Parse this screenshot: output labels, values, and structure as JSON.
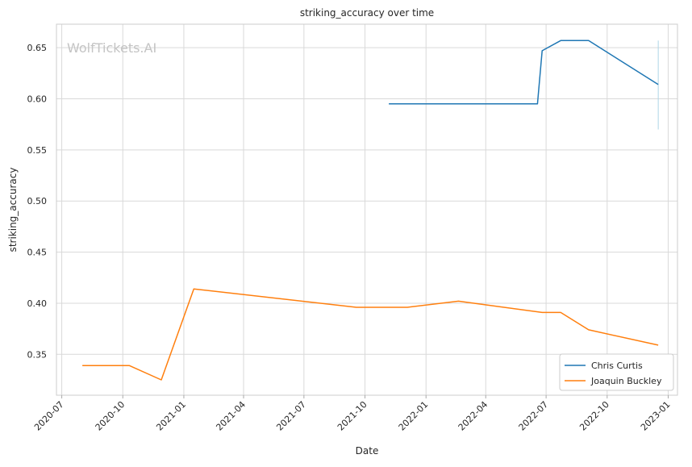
{
  "chart_data": {
    "type": "line",
    "title": "striking_accuracy over time",
    "xlabel": "Date",
    "ylabel": "striking_accuracy",
    "watermark": "WolfTickets.AI",
    "x_ticks": [
      "2020-07",
      "2020-10",
      "2021-01",
      "2021-04",
      "2021-07",
      "2021-10",
      "2022-01",
      "2022-04",
      "2022-07",
      "2022-10",
      "2023-01"
    ],
    "y_ticks": [
      "0.35",
      "0.40",
      "0.45",
      "0.50",
      "0.55",
      "0.60",
      "0.65"
    ],
    "xlim": [
      "2020-06-23",
      "2023-01-15"
    ],
    "ylim": [
      0.31,
      0.673
    ],
    "grid": true,
    "legend_position": "lower right",
    "series": [
      {
        "name": "Chris Curtis",
        "color": "#1f77b4",
        "points": [
          {
            "x": "2021-11-06",
            "y": 0.595
          },
          {
            "x": "2022-06-18",
            "y": 0.595
          },
          {
            "x": "2022-06-25",
            "y": 0.647
          },
          {
            "x": "2022-07-23",
            "y": 0.657
          },
          {
            "x": "2022-09-03",
            "y": 0.657
          },
          {
            "x": "2022-12-17",
            "y": 0.614
          }
        ]
      },
      {
        "name": "Joaquin Buckley",
        "color": "#ff7f0e",
        "points": [
          {
            "x": "2020-08-01",
            "y": 0.339
          },
          {
            "x": "2020-10-11",
            "y": 0.339
          },
          {
            "x": "2020-11-28",
            "y": 0.325
          },
          {
            "x": "2021-01-16",
            "y": 0.414
          },
          {
            "x": "2021-09-18",
            "y": 0.396
          },
          {
            "x": "2021-12-04",
            "y": 0.396
          },
          {
            "x": "2022-02-19",
            "y": 0.402
          },
          {
            "x": "2022-06-25",
            "y": 0.391
          },
          {
            "x": "2022-07-23",
            "y": 0.391
          },
          {
            "x": "2022-09-03",
            "y": 0.374
          },
          {
            "x": "2022-12-17",
            "y": 0.359
          }
        ]
      }
    ],
    "error_bar": {
      "x": "2022-12-17",
      "y_low": 0.57,
      "y_high": 0.657,
      "color": "#aed6e8"
    }
  }
}
